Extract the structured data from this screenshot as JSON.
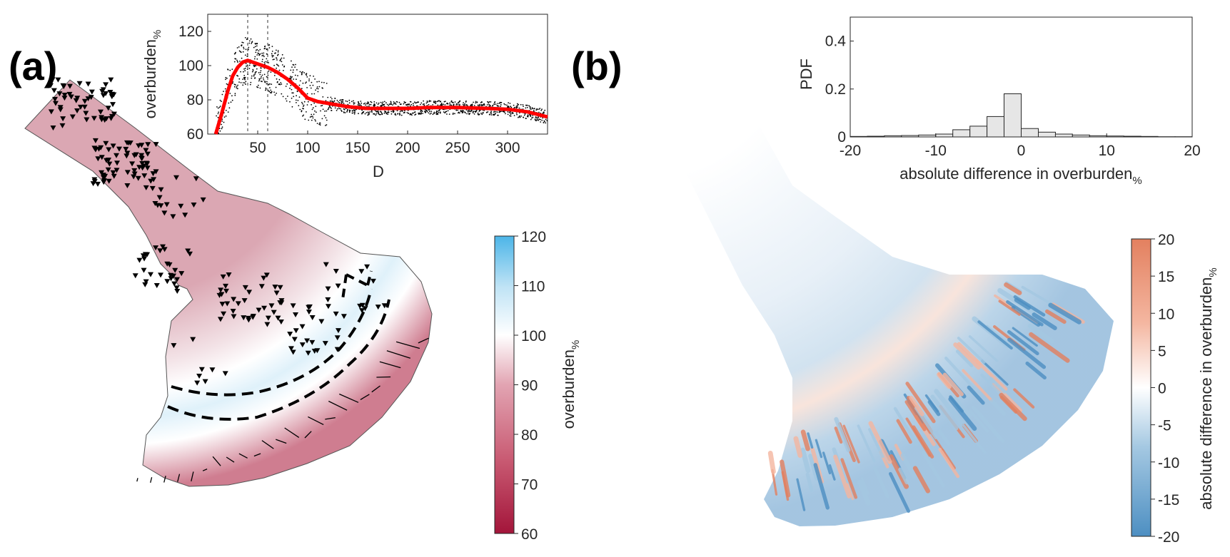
{
  "panels": {
    "a": "(a)",
    "b": "(b)"
  },
  "chart_data": [
    {
      "type": "scatter",
      "panel": "(a) inset",
      "xlabel": "D",
      "ylabel": "overburden",
      "ylabel_sub": "%",
      "xlim": [
        0,
        340
      ],
      "ylim": [
        60,
        130
      ],
      "xticks": [
        50,
        100,
        150,
        200,
        250,
        300
      ],
      "yticks": [
        60,
        80,
        100,
        120
      ],
      "reference_lines_x": [
        40,
        60
      ],
      "scatter_color": "#000000",
      "fit_color": "#ff0000",
      "fit_curve": {
        "x": [
          8,
          14,
          20,
          25,
          30,
          35,
          40,
          50,
          60,
          70,
          80,
          90,
          100,
          110,
          120,
          140,
          160,
          180,
          200,
          220,
          250,
          280,
          300,
          320,
          340
        ],
        "y": [
          60,
          72,
          85,
          94,
          99,
          102,
          103,
          101,
          99,
          96,
          92,
          87,
          81,
          79,
          78,
          76,
          75,
          75,
          75,
          75.5,
          75.5,
          75,
          74.5,
          73,
          70
        ]
      }
    },
    {
      "type": "bar",
      "panel": "(b) inset",
      "xlabel": "absolute difference in overburden",
      "xlabel_sub": "%",
      "ylabel": "PDF",
      "xlim": [
        -20,
        20
      ],
      "ylim": [
        0,
        0.5
      ],
      "xticks": [
        -20,
        -10,
        0,
        10,
        20
      ],
      "yticks": [
        0,
        0.2,
        0.4
      ],
      "bin_width": 2,
      "bin_centers": [
        -19,
        -17,
        -15,
        -13,
        -11,
        -9,
        -7,
        -5,
        -3,
        -1,
        1,
        3,
        5,
        7,
        9,
        11,
        13,
        15,
        17,
        19
      ],
      "values": [
        0.002,
        0.003,
        0.005,
        0.006,
        0.008,
        0.012,
        0.03,
        0.045,
        0.085,
        0.18,
        0.035,
        0.02,
        0.012,
        0.008,
        0.005,
        0.004,
        0.003,
        0.002,
        0.001,
        0.001
      ],
      "bar_color": "#e6e6e6"
    },
    {
      "type": "heatmap",
      "panel": "(a) map",
      "colorbar_label": "overburden",
      "colorbar_label_sub": "%",
      "colorbar_range": [
        60,
        120
      ],
      "colorbar_ticks": [
        60,
        70,
        80,
        90,
        100,
        110,
        120
      ],
      "colormap": [
        "#a3153a",
        "#c95b73",
        "#e2a4b2",
        "#ffffff",
        "#bfe3f5",
        "#4cb5e8"
      ],
      "marker_color": "#000000"
    },
    {
      "type": "heatmap",
      "panel": "(b) map",
      "colorbar_label": "absolute difference in overburden",
      "colorbar_label_sub": "%",
      "colorbar_range": [
        -20,
        20
      ],
      "colorbar_ticks": [
        -20,
        -15,
        -10,
        -5,
        0,
        5,
        10,
        15,
        20
      ],
      "colormap": [
        "#4d8fc2",
        "#a4c8e2",
        "#ffffff",
        "#f4b6a0",
        "#e3805f"
      ]
    }
  ]
}
